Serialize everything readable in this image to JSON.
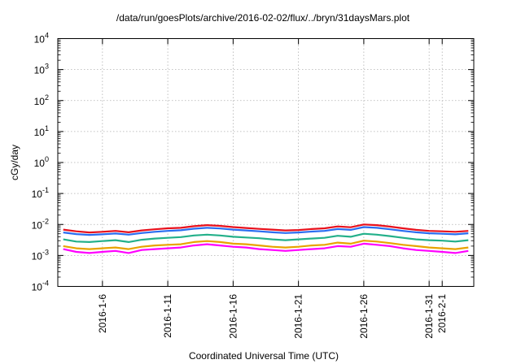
{
  "chart_data": {
    "type": "line",
    "title": "/data/run/goesPlots/archive/2016-02-02/flux/../bryn/31daysMars.plot",
    "xlabel": "Coordinated Universal Time (UTC)",
    "ylabel": "cGy/day",
    "yscale": "log",
    "ylim": [
      0.0001,
      10000
    ],
    "yticks": [
      {
        "value": 0.0001,
        "base": "10",
        "exp": "-4"
      },
      {
        "value": 0.001,
        "base": "10",
        "exp": "-3"
      },
      {
        "value": 0.01,
        "base": "10",
        "exp": "-2"
      },
      {
        "value": 0.1,
        "base": "10",
        "exp": "-1"
      },
      {
        "value": 1,
        "base": "10",
        "exp": "0"
      },
      {
        "value": 10,
        "base": "10",
        "exp": "1"
      },
      {
        "value": 100,
        "base": "10",
        "exp": "2"
      },
      {
        "value": 1000,
        "base": "10",
        "exp": "3"
      },
      {
        "value": 10000,
        "base": "10",
        "exp": "4"
      }
    ],
    "xlim": [
      "2016-01-02T14:00",
      "2016-02-03T10:00"
    ],
    "xticks": [
      {
        "date": "2016-01-06",
        "label": "2016-1-6"
      },
      {
        "date": "2016-01-11",
        "label": "2016-1-11"
      },
      {
        "date": "2016-01-16",
        "label": "2016-1-16"
      },
      {
        "date": "2016-01-21",
        "label": "2016-1-21"
      },
      {
        "date": "2016-01-26",
        "label": "2016-1-26"
      },
      {
        "date": "2016-01-31",
        "label": "2016-1-31"
      },
      {
        "date": "2016-02-01",
        "label": "2016-2-1"
      }
    ],
    "grid": true,
    "legend": "none",
    "x": [
      "2016-01-03",
      "2016-01-04",
      "2016-01-05",
      "2016-01-06",
      "2016-01-07",
      "2016-01-08",
      "2016-01-09",
      "2016-01-10",
      "2016-01-11",
      "2016-01-12",
      "2016-01-13",
      "2016-01-14",
      "2016-01-15",
      "2016-01-16",
      "2016-01-17",
      "2016-01-18",
      "2016-01-19",
      "2016-01-20",
      "2016-01-21",
      "2016-01-22",
      "2016-01-23",
      "2016-01-24",
      "2016-01-25",
      "2016-01-26",
      "2016-01-27",
      "2016-01-28",
      "2016-01-29",
      "2016-01-30",
      "2016-01-31",
      "2016-02-01",
      "2016-02-02",
      "2016-02-03"
    ],
    "series": [
      {
        "color": "#e8101c",
        "values": [
          0.0068,
          0.006,
          0.0055,
          0.0058,
          0.0062,
          0.0056,
          0.0064,
          0.007,
          0.0075,
          0.0078,
          0.0088,
          0.0095,
          0.009,
          0.0082,
          0.0077,
          0.0072,
          0.0068,
          0.0064,
          0.0066,
          0.0071,
          0.0075,
          0.0086,
          0.0081,
          0.01,
          0.0095,
          0.0085,
          0.0075,
          0.0067,
          0.0062,
          0.006,
          0.0058,
          0.0062
        ]
      },
      {
        "color": "#2a6df0",
        "values": [
          0.0055,
          0.0049,
          0.0046,
          0.0048,
          0.0051,
          0.0047,
          0.0053,
          0.0058,
          0.0062,
          0.0065,
          0.0073,
          0.0078,
          0.0074,
          0.0068,
          0.0064,
          0.006,
          0.0056,
          0.0053,
          0.0055,
          0.0059,
          0.0062,
          0.0071,
          0.0067,
          0.0082,
          0.0078,
          0.007,
          0.0062,
          0.0056,
          0.0052,
          0.005,
          0.0048,
          0.0052
        ]
      },
      {
        "color": "#23b08a",
        "values": [
          0.0033,
          0.0028,
          0.0027,
          0.0029,
          0.0031,
          0.0027,
          0.0032,
          0.0035,
          0.0037,
          0.0039,
          0.0044,
          0.0047,
          0.0044,
          0.004,
          0.0038,
          0.0036,
          0.0033,
          0.0031,
          0.0033,
          0.0035,
          0.0037,
          0.0043,
          0.004,
          0.005,
          0.0047,
          0.0042,
          0.0037,
          0.0033,
          0.0031,
          0.003,
          0.0028,
          0.0031
        ]
      },
      {
        "color": "#e8a300",
        "values": [
          0.002,
          0.0017,
          0.0016,
          0.0017,
          0.0018,
          0.0016,
          0.0019,
          0.0021,
          0.0022,
          0.0023,
          0.0027,
          0.0029,
          0.0027,
          0.0024,
          0.0023,
          0.0021,
          0.0019,
          0.0018,
          0.0019,
          0.0021,
          0.0022,
          0.0026,
          0.0024,
          0.003,
          0.0028,
          0.0025,
          0.0022,
          0.002,
          0.0018,
          0.0017,
          0.0016,
          0.0018
        ]
      },
      {
        "color": "#ff00ff",
        "values": [
          0.0016,
          0.0013,
          0.0012,
          0.0013,
          0.0014,
          0.0012,
          0.0015,
          0.0016,
          0.0017,
          0.0018,
          0.0021,
          0.0023,
          0.0021,
          0.0019,
          0.0018,
          0.0016,
          0.0015,
          0.0014,
          0.0015,
          0.0016,
          0.0017,
          0.002,
          0.0019,
          0.0024,
          0.0022,
          0.002,
          0.0017,
          0.0015,
          0.0014,
          0.0013,
          0.0012,
          0.0014
        ]
      }
    ]
  }
}
